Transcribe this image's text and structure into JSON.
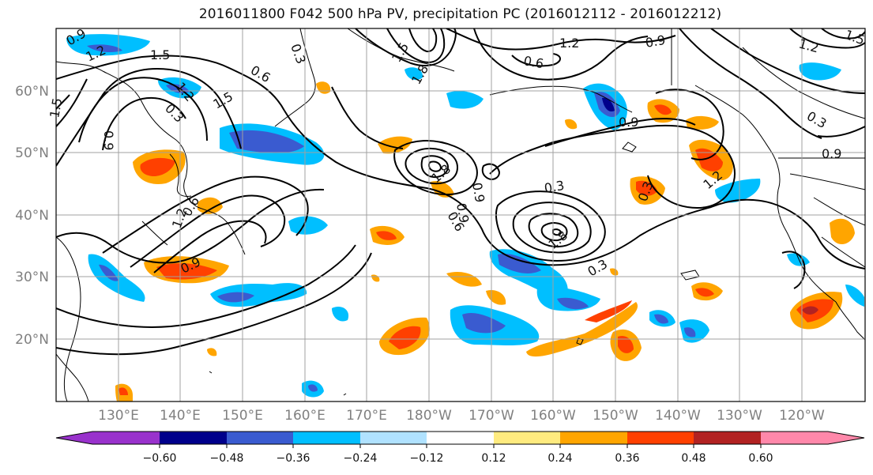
{
  "title": "2016011800 F042 500 hPa PV, precipitation PC (2016012112 - 2016012212)",
  "lat_ticks": [
    "60°N",
    "50°N",
    "40°N",
    "30°N",
    "20°N"
  ],
  "lon_ticks": [
    "130°E",
    "140°E",
    "150°E",
    "160°E",
    "170°E",
    "180°W",
    "170°W",
    "160°W",
    "150°W",
    "140°W",
    "130°W",
    "120°W"
  ],
  "colorbar": {
    "colors": [
      "#9932CC",
      "#00008B",
      "#3A5BD0",
      "#00BFFF",
      "#B0E2FF",
      "#FFFFFF",
      "#FFEB7F",
      "#FFA500",
      "#FF4000",
      "#B22222",
      "#FF88AA"
    ],
    "tick_labels": [
      "−0.60",
      "−0.48",
      "−0.36",
      "−0.24",
      "−0.12",
      "0.12",
      "0.24",
      "0.36",
      "0.48",
      "0.60"
    ]
  },
  "contour_labels": [
    "0.9",
    "1.2",
    "1.5",
    "0.3",
    "0.6",
    "1.5",
    "1.8",
    "0.6",
    "1.2",
    "0.9",
    "1.2",
    "1.5",
    "1.2",
    "0.3",
    "0.9",
    "0.9",
    "0.3",
    "1.8",
    "0.9",
    "0.6",
    "0.3",
    "1.2",
    "0.3",
    "1.8",
    "0.6",
    "0.9",
    "0.3",
    "1.5",
    "0.9",
    "1.2",
    "1.5",
    "0.9"
  ]
}
